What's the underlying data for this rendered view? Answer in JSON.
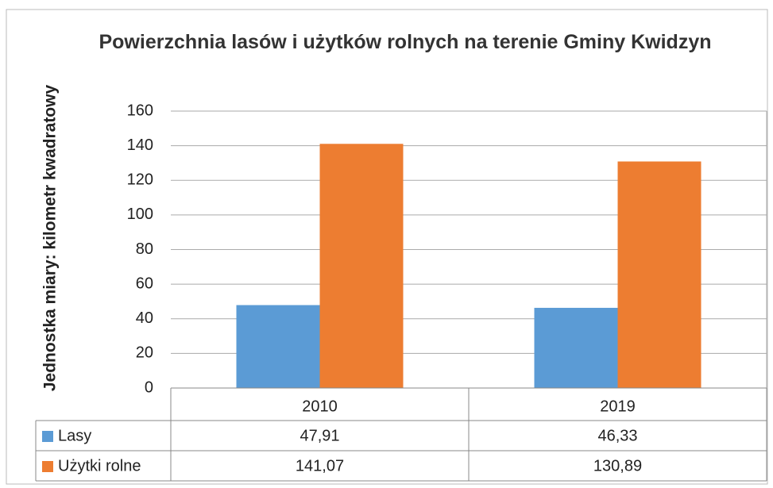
{
  "chart_data": {
    "type": "bar",
    "title": "Powierzchnia lasów i użytków rolnych na terenie Gminy Kwidzyn",
    "y_label": "Jednostka miary: kilometr kwadratowy",
    "categories": [
      "2010",
      "2019"
    ],
    "series": [
      {
        "name": "Lasy",
        "color": "#5b9bd5",
        "values": [
          47.91,
          46.33
        ],
        "value_labels": [
          "47,91",
          "46,33"
        ]
      },
      {
        "name": "Użytki rolne",
        "color": "#ed7d31",
        "values": [
          141.07,
          130.89
        ],
        "value_labels": [
          "141,07",
          "130,89"
        ]
      }
    ],
    "ylim": [
      0,
      160
    ],
    "yticks": [
      0,
      20,
      40,
      60,
      80,
      100,
      120,
      140,
      160
    ],
    "grid": true,
    "data_table": true
  }
}
